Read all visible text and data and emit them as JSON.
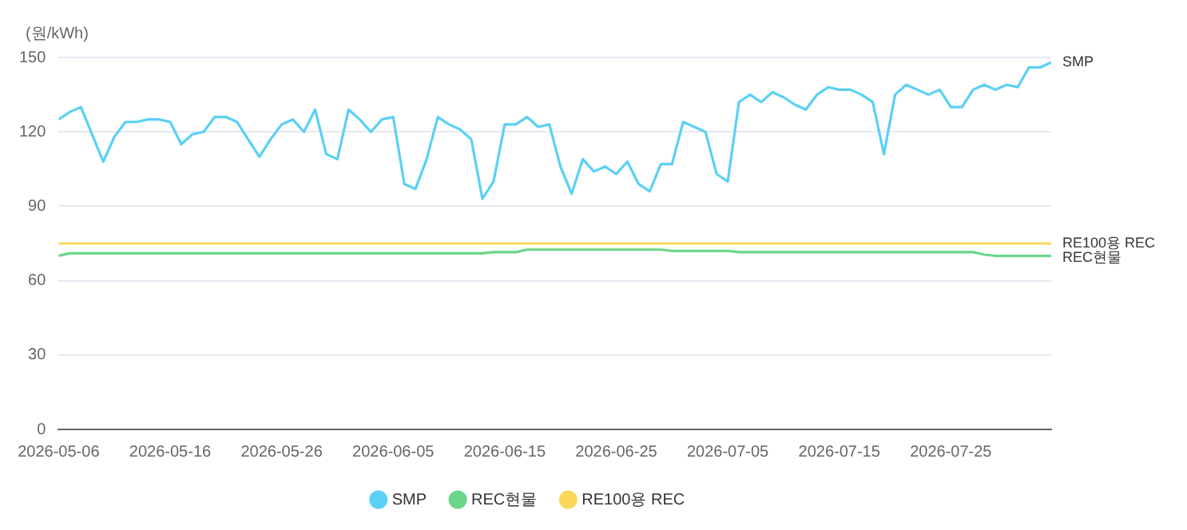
{
  "chart_data": {
    "type": "line",
    "ylabel": "(원/kWh)",
    "x": [
      "2026-05-06",
      "2026-05-07",
      "2026-05-08",
      "2026-05-09",
      "2026-05-10",
      "2026-05-11",
      "2026-05-12",
      "2026-05-13",
      "2026-05-14",
      "2026-05-15",
      "2026-05-16",
      "2026-05-17",
      "2026-05-18",
      "2026-05-19",
      "2026-05-20",
      "2026-05-21",
      "2026-05-22",
      "2026-05-23",
      "2026-05-24",
      "2026-05-25",
      "2026-05-26",
      "2026-05-27",
      "2026-05-28",
      "2026-05-29",
      "2026-05-30",
      "2026-05-31",
      "2026-06-01",
      "2026-06-02",
      "2026-06-03",
      "2026-06-04",
      "2026-06-05",
      "2026-06-06",
      "2026-06-07",
      "2026-06-08",
      "2026-06-09",
      "2026-06-10",
      "2026-06-11",
      "2026-06-12",
      "2026-06-13",
      "2026-06-14",
      "2026-06-15",
      "2026-06-16",
      "2026-06-17",
      "2026-06-18",
      "2026-06-19",
      "2026-06-20",
      "2026-06-21",
      "2026-06-22",
      "2026-06-23",
      "2026-06-24",
      "2026-06-25",
      "2026-06-26",
      "2026-06-27",
      "2026-06-28",
      "2026-06-29",
      "2026-06-30",
      "2026-07-01",
      "2026-07-02",
      "2026-07-03",
      "2026-07-04",
      "2026-07-05",
      "2026-07-06",
      "2026-07-07",
      "2026-07-08",
      "2026-07-09",
      "2026-07-10",
      "2026-07-11",
      "2026-07-12",
      "2026-07-13",
      "2026-07-14",
      "2026-07-15",
      "2026-07-16",
      "2026-07-17",
      "2026-07-18",
      "2026-07-19",
      "2026-07-20",
      "2026-07-21",
      "2026-07-22",
      "2026-07-23",
      "2026-07-24",
      "2026-07-25",
      "2026-07-26",
      "2026-07-27",
      "2026-07-28",
      "2026-07-29",
      "2026-07-30",
      "2026-07-31",
      "2026-08-01",
      "2026-08-02",
      "2026-08-03"
    ],
    "series": [
      {
        "name": "SMP",
        "color": "#5ad0f5",
        "values": [
          125,
          128,
          130,
          119,
          108,
          118,
          124,
          124,
          125,
          125,
          124,
          115,
          119,
          120,
          126,
          126,
          124,
          117,
          110,
          117,
          123,
          125,
          120,
          129,
          111,
          109,
          129,
          125,
          120,
          125,
          126,
          99,
          97,
          109,
          126,
          123,
          121,
          117,
          93,
          100,
          123,
          123,
          126,
          122,
          123,
          106,
          95,
          109,
          104,
          106,
          103,
          108,
          99,
          96,
          107,
          107,
          124,
          122,
          120,
          103,
          100,
          132,
          135,
          132,
          136,
          134,
          131,
          129,
          135,
          138,
          137,
          137,
          135,
          132,
          111,
          135,
          139,
          137,
          135,
          137,
          130,
          130,
          137,
          139,
          137,
          139,
          138,
          146,
          146,
          148
        ]
      },
      {
        "name": "REC현물",
        "color": "#6cd68a",
        "values": [
          70,
          71,
          71,
          71,
          71,
          71,
          71,
          71,
          71,
          71,
          71,
          71,
          71,
          71,
          71,
          71,
          71,
          71,
          71,
          71,
          71,
          71,
          71,
          71,
          71,
          71,
          71,
          71,
          71,
          71,
          71,
          71,
          71,
          71,
          71,
          71,
          71,
          71,
          71,
          71.5,
          71.5,
          71.5,
          72.5,
          72.5,
          72.5,
          72.5,
          72.5,
          72.5,
          72.5,
          72.5,
          72.5,
          72.5,
          72.5,
          72.5,
          72.5,
          72,
          72,
          72,
          72,
          72,
          72,
          71.5,
          71.5,
          71.5,
          71.5,
          71.5,
          71.5,
          71.5,
          71.5,
          71.5,
          71.5,
          71.5,
          71.5,
          71.5,
          71.5,
          71.5,
          71.5,
          71.5,
          71.5,
          71.5,
          71.5,
          71.5,
          71.5,
          70.5,
          70,
          70,
          70,
          70,
          70,
          70
        ]
      },
      {
        "name": "RE100용 REC",
        "color": "#fad75a",
        "values": [
          75,
          75,
          75,
          75,
          75,
          75,
          75,
          75,
          75,
          75,
          75,
          75,
          75,
          75,
          75,
          75,
          75,
          75,
          75,
          75,
          75,
          75,
          75,
          75,
          75,
          75,
          75,
          75,
          75,
          75,
          75,
          75,
          75,
          75,
          75,
          75,
          75,
          75,
          75,
          75,
          75,
          75,
          75,
          75,
          75,
          75,
          75,
          75,
          75,
          75,
          75,
          75,
          75,
          75,
          75,
          75,
          75,
          75,
          75,
          75,
          75,
          75,
          75,
          75,
          75,
          75,
          75,
          75,
          75,
          75,
          75,
          75,
          75,
          75,
          75,
          75,
          75,
          75,
          75,
          75,
          75,
          75,
          75,
          75,
          75,
          75,
          75,
          75,
          75,
          75
        ]
      }
    ],
    "xlim": [
      "2026-05-06",
      "2026-08-03"
    ],
    "xticks": [
      "2026-05-06",
      "2026-05-16",
      "2026-05-26",
      "2026-06-05",
      "2026-06-15",
      "2026-06-25",
      "2026-07-05",
      "2026-07-15",
      "2026-07-25"
    ],
    "ylim": [
      0,
      150
    ],
    "yticks": [
      0,
      30,
      60,
      90,
      120,
      150
    ],
    "grid": "y",
    "legend": "bottom",
    "marker": "none",
    "line_style": "solid"
  }
}
